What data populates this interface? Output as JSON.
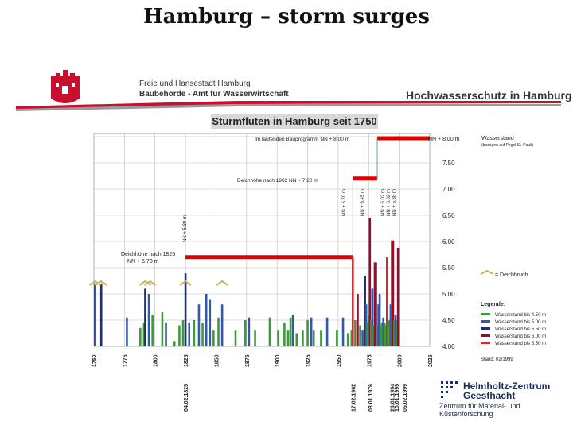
{
  "slide": {
    "title": "Hamburg – storm surges"
  },
  "poster": {
    "org_line1": "Freie und Hansestadt Hamburg",
    "org_line2": "Baubehörde - Amt für Wasserwirtschaft",
    "header_right": "Hochwasserschutz in Hamburg",
    "banner": "Sturmfluten in Hamburg seit 1750"
  },
  "footer": {
    "logo_line1": "Helmholtz-Zentrum",
    "logo_line2": "Geesthacht",
    "logo_sub": "Zentrum für Material- und Küstenforschung"
  },
  "colors": {
    "bar_green": "#3c9a3c",
    "bar_blue": "#3558a8",
    "bar_navy": "#1f2f6e",
    "bar_darkred": "#8e1030",
    "bar_red": "#c83030",
    "marker_red": "#e00000",
    "axis_bg": "#ffffff"
  },
  "chart_data": {
    "type": "bar",
    "title": "Sturmfluten in Hamburg seit 1750",
    "xlim": [
      1750,
      2025
    ],
    "ylim": [
      4.0,
      8.2
    ],
    "x_ticks": [
      1750,
      1775,
      1800,
      1825,
      1850,
      1875,
      1900,
      1925,
      1950,
      1975,
      2000,
      2025
    ],
    "y_ticks": [
      "7.50",
      "7.00",
      "6.50",
      "6.00",
      "5.50",
      "5.00",
      "4.50",
      "4.00"
    ],
    "y_axis_title": "Wasserstand",
    "y_axis_subtitle": "(bezogen auf Pegel St. Pauli)",
    "legend_title": "Legende:",
    "legend": [
      {
        "label": "Wasserstand bis 4.50 m",
        "color": "#3c9a3c"
      },
      {
        "label": "Wasserstand bis 5.00 m",
        "color": "#3558a8"
      },
      {
        "label": "Wasserstand bis 5.50 m",
        "color": "#1f2f6e"
      },
      {
        "label": "Wasserstand bis 6.00 m",
        "color": "#8e1030"
      },
      {
        "label": "Wasserstand bis 6.50 m",
        "color": "#c83030"
      }
    ],
    "deichbruch_label": "= Deichbruch",
    "stand": "Stand: 02/1999",
    "dike_labels": {
      "d1825_line1": "Deichhöhe nach 1825",
      "d1825_line2": "NN + 5.70 m",
      "d1962": "Deichhöhe nach 1962  NN + 7.20 m",
      "bauprogramm": "Im laufenden Bauprogramm  NN + 8.00 m",
      "nn800": "NN + 8.00 m",
      "nn539": "NN + 5.39 m",
      "nn570": "NN + 5.70 m",
      "nn645": "NN + 6.45 m",
      "nn602a": "NN + 6.02 m",
      "nn602b": "NN + 6.02 m",
      "nn588": "NN + 5.88 m"
    },
    "dike_levels": [
      {
        "from": 1825,
        "to": 1962,
        "y": 5.7
      },
      {
        "from": 1962,
        "to": 1982,
        "y": 7.2
      },
      {
        "from": 1982,
        "to": 2025,
        "y": 8.0
      }
    ],
    "event_dates": [
      "04.02.1825",
      "17.02.1962",
      "03.01.1976",
      "28.01.1994",
      "10.01.1995",
      "05.02.1999"
    ],
    "deichbruch_years": [
      1751,
      1756,
      1792,
      1796,
      1825,
      1855
    ],
    "bars": [
      {
        "x": 1751,
        "y": 5.2,
        "c": "#1f2f6e"
      },
      {
        "x": 1756,
        "y": 5.2,
        "c": "#1f2f6e"
      },
      {
        "x": 1777,
        "y": 4.55,
        "c": "#3558a8"
      },
      {
        "x": 1788,
        "y": 4.35,
        "c": "#3c9a3c"
      },
      {
        "x": 1791,
        "y": 4.45,
        "c": "#3c9a3c"
      },
      {
        "x": 1792,
        "y": 5.1,
        "c": "#1f2f6e"
      },
      {
        "x": 1795,
        "y": 5.0,
        "c": "#3558a8"
      },
      {
        "x": 1798,
        "y": 4.6,
        "c": "#3c9a3c"
      },
      {
        "x": 1806,
        "y": 4.65,
        "c": "#3c9a3c"
      },
      {
        "x": 1809,
        "y": 4.45,
        "c": "#3558a8"
      },
      {
        "x": 1816,
        "y": 4.1,
        "c": "#3c9a3c"
      },
      {
        "x": 1820,
        "y": 4.4,
        "c": "#3c9a3c"
      },
      {
        "x": 1823,
        "y": 4.5,
        "c": "#3c9a3c"
      },
      {
        "x": 1825,
        "y": 5.39,
        "c": "#1f2f6e"
      },
      {
        "x": 1828,
        "y": 4.45,
        "c": "#3558a8"
      },
      {
        "x": 1832,
        "y": 4.5,
        "c": "#3c9a3c"
      },
      {
        "x": 1836,
        "y": 4.8,
        "c": "#3558a8"
      },
      {
        "x": 1839,
        "y": 4.45,
        "c": "#3c9a3c"
      },
      {
        "x": 1842,
        "y": 5.0,
        "c": "#3558a8"
      },
      {
        "x": 1845,
        "y": 4.9,
        "c": "#3558a8"
      },
      {
        "x": 1848,
        "y": 4.3,
        "c": "#3c9a3c"
      },
      {
        "x": 1852,
        "y": 4.55,
        "c": "#3c9a3c"
      },
      {
        "x": 1855,
        "y": 4.8,
        "c": "#3558a8"
      },
      {
        "x": 1866,
        "y": 4.3,
        "c": "#3c9a3c"
      },
      {
        "x": 1874,
        "y": 4.5,
        "c": "#3c9a3c"
      },
      {
        "x": 1877,
        "y": 4.55,
        "c": "#3558a8"
      },
      {
        "x": 1882,
        "y": 4.3,
        "c": "#3c9a3c"
      },
      {
        "x": 1894,
        "y": 4.55,
        "c": "#3c9a3c"
      },
      {
        "x": 1901,
        "y": 4.3,
        "c": "#3c9a3c"
      },
      {
        "x": 1906,
        "y": 4.45,
        "c": "#3c9a3c"
      },
      {
        "x": 1909,
        "y": 4.3,
        "c": "#3c9a3c"
      },
      {
        "x": 1911,
        "y": 4.55,
        "c": "#3c9a3c"
      },
      {
        "x": 1913,
        "y": 4.6,
        "c": "#3558a8"
      },
      {
        "x": 1916,
        "y": 4.25,
        "c": "#3c9a3c"
      },
      {
        "x": 1921,
        "y": 4.3,
        "c": "#3c9a3c"
      },
      {
        "x": 1925,
        "y": 4.5,
        "c": "#3c9a3c"
      },
      {
        "x": 1928,
        "y": 4.55,
        "c": "#3558a8"
      },
      {
        "x": 1930,
        "y": 4.3,
        "c": "#3c9a3c"
      },
      {
        "x": 1936,
        "y": 4.3,
        "c": "#3c9a3c"
      },
      {
        "x": 1941,
        "y": 4.55,
        "c": "#3558a8"
      },
      {
        "x": 1949,
        "y": 4.3,
        "c": "#3c9a3c"
      },
      {
        "x": 1954,
        "y": 4.55,
        "c": "#3558a8"
      },
      {
        "x": 1958,
        "y": 4.25,
        "c": "#3c9a3c"
      },
      {
        "x": 1961,
        "y": 4.3,
        "c": "#3c9a3c"
      },
      {
        "x": 1962,
        "y": 5.7,
        "c": "#c83030"
      },
      {
        "x": 1964,
        "y": 4.5,
        "c": "#3c9a3c"
      },
      {
        "x": 1966,
        "y": 5.0,
        "c": "#8e1030"
      },
      {
        "x": 1968,
        "y": 4.4,
        "c": "#3c9a3c"
      },
      {
        "x": 1970,
        "y": 4.3,
        "c": "#3558a8"
      },
      {
        "x": 1972,
        "y": 5.35,
        "c": "#1f2f6e"
      },
      {
        "x": 1973,
        "y": 4.8,
        "c": "#3558a8"
      },
      {
        "x": 1974,
        "y": 4.45,
        "c": "#3c9a3c"
      },
      {
        "x": 1975,
        "y": 4.6,
        "c": "#3c9a3c"
      },
      {
        "x": 1976,
        "y": 6.45,
        "c": "#8e1030"
      },
      {
        "x": 1977,
        "y": 4.5,
        "c": "#3c9a3c"
      },
      {
        "x": 1978,
        "y": 5.1,
        "c": "#3558a8"
      },
      {
        "x": 1979,
        "y": 4.4,
        "c": "#3c9a3c"
      },
      {
        "x": 1980,
        "y": 5.6,
        "c": "#8e1030"
      },
      {
        "x": 1981,
        "y": 5.6,
        "c": "#8e1030"
      },
      {
        "x": 1982,
        "y": 4.4,
        "c": "#3c9a3c"
      },
      {
        "x": 1983,
        "y": 4.8,
        "c": "#3558a8"
      },
      {
        "x": 1984,
        "y": 5.0,
        "c": "#3558a8"
      },
      {
        "x": 1985,
        "y": 4.4,
        "c": "#3c9a3c"
      },
      {
        "x": 1986,
        "y": 4.45,
        "c": "#3c9a3c"
      },
      {
        "x": 1987,
        "y": 4.55,
        "c": "#3558a8"
      },
      {
        "x": 1988,
        "y": 4.45,
        "c": "#3c9a3c"
      },
      {
        "x": 1989,
        "y": 4.4,
        "c": "#3c9a3c"
      },
      {
        "x": 1990,
        "y": 5.7,
        "c": "#c83030"
      },
      {
        "x": 1991,
        "y": 4.45,
        "c": "#3c9a3c"
      },
      {
        "x": 1992,
        "y": 4.5,
        "c": "#3c9a3c"
      },
      {
        "x": 1993,
        "y": 4.8,
        "c": "#3558a8"
      },
      {
        "x": 1994,
        "y": 6.02,
        "c": "#c83030"
      },
      {
        "x": 1995,
        "y": 6.02,
        "c": "#8e1030"
      },
      {
        "x": 1996,
        "y": 4.5,
        "c": "#3c9a3c"
      },
      {
        "x": 1997,
        "y": 4.6,
        "c": "#3558a8"
      },
      {
        "x": 1998,
        "y": 4.5,
        "c": "#3c9a3c"
      },
      {
        "x": 1999,
        "y": 5.88,
        "c": "#8e1030"
      }
    ]
  }
}
